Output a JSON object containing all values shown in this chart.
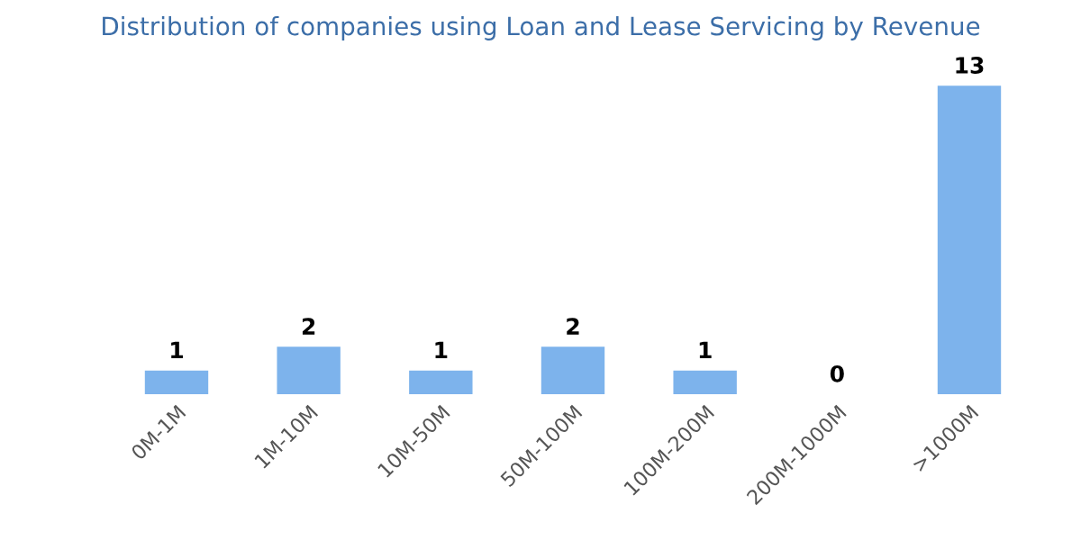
{
  "chart_data": {
    "type": "bar",
    "title": "Distribution of companies using Loan and Lease Servicing by Revenue",
    "categories": [
      "0M-1M",
      "1M-10M",
      "10M-50M",
      "50M-100M",
      "100M-200M",
      "200M-1000M",
      ">1000M"
    ],
    "values": [
      1,
      2,
      1,
      2,
      1,
      0,
      13
    ],
    "color": "#7db3ec",
    "data_labels": true,
    "grid": false
  }
}
